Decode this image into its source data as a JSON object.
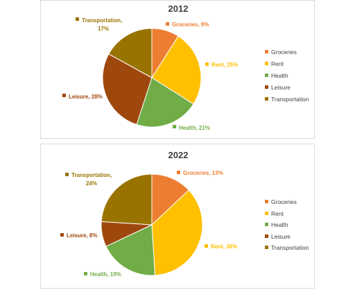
{
  "chart_data": [
    {
      "type": "pie",
      "title": "2012",
      "categories": [
        "Groceries",
        "Rent",
        "Health",
        "Leisure",
        "Transportation"
      ],
      "values": [
        9,
        25,
        21,
        28,
        17
      ],
      "data_labels": [
        "Groceries, 9%",
        "Rent, 25%",
        "Health, 21%",
        "Leisure, 28%",
        "Transportation, 17%"
      ],
      "legend": [
        "Groceries",
        "Rent",
        "Health",
        "Leisure",
        "Transportation"
      ],
      "legend_position": "right",
      "colors": [
        "#ed7d31",
        "#ffc000",
        "#70ad47",
        "#9e480e",
        "#997300"
      ]
    },
    {
      "type": "pie",
      "title": "2022",
      "categories": [
        "Groceries",
        "Rent",
        "Health",
        "Leisure",
        "Transportation"
      ],
      "values": [
        13,
        36,
        19,
        8,
        24
      ],
      "data_labels": [
        "Groceries, 13%",
        "Rent, 36%",
        "Health, 19%",
        "Leisure, 8%",
        "Transportation, 24%"
      ],
      "legend": [
        "Groceries",
        "Rent",
        "Health",
        "Leisure",
        "Transportation"
      ],
      "legend_position": "right",
      "colors": [
        "#ed7d31",
        "#ffc000",
        "#70ad47",
        "#9e480e",
        "#997300"
      ]
    }
  ]
}
